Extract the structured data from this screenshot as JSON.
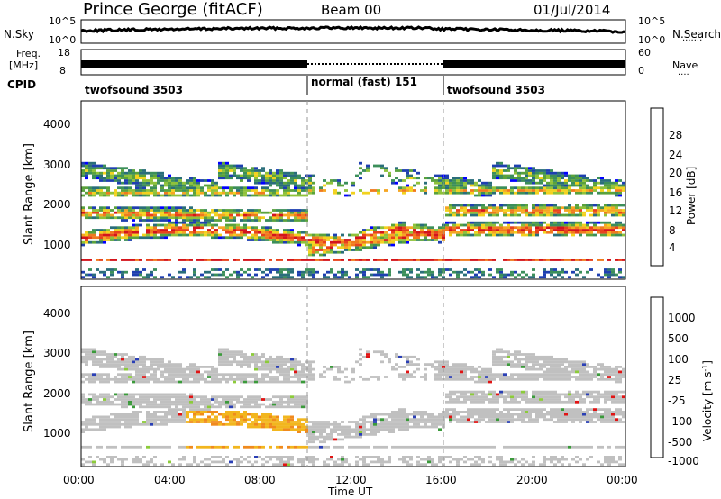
{
  "header": {
    "station": "Prince George (fitACF)",
    "beam": "Beam 00",
    "date": "01/Jul/2014"
  },
  "noise_panel": {
    "left_label": "N.Sky",
    "right_label": "N.Search",
    "ticks_left": [
      "10^5",
      "10^0"
    ],
    "ticks_right": [
      "10^5",
      "10^0"
    ]
  },
  "freq_panel": {
    "left_label_1": "Freq.",
    "left_label_2": "[MHz]",
    "right_label": "Nave",
    "ticks_left": [
      "18",
      "8"
    ],
    "ticks_right": [
      "60",
      "0"
    ]
  },
  "cpid_panel": {
    "label": "CPID",
    "segments": [
      {
        "label": "twofsound 3503",
        "start_h": 0,
        "end_h": 10
      },
      {
        "label": "normal (fast) 151",
        "start_h": 10,
        "end_h": 16
      },
      {
        "label": "twofsound 3503",
        "start_h": 16,
        "end_h": 24
      }
    ]
  },
  "power_panel": {
    "ylabel": "Slant Range [km]",
    "yticks": [
      "1000",
      "2000",
      "3000",
      "4000"
    ],
    "colorbar_label": "Power [dB]",
    "colorbar_ticks": [
      "4",
      "8",
      "12",
      "16",
      "20",
      "24",
      "28"
    ],
    "colors": [
      "#0000ff",
      "#1e3fb0",
      "#2a6e7a",
      "#3c8f5a",
      "#5aa23c",
      "#8fc23a",
      "#f2d21e",
      "#f5a623",
      "#f07a1e",
      "#e8421c",
      "#d4141c"
    ]
  },
  "velocity_panel": {
    "ylabel": "Slant Range [km]",
    "yticks": [
      "1000",
      "2000",
      "3000",
      "4000"
    ],
    "colorbar_label": "Velocity [m s",
    "colorbar_superscript": "-1",
    "colorbar_ticks": [
      "1000",
      "500",
      "100",
      "25",
      "-25",
      "-100",
      "-500",
      "-1000"
    ],
    "colors": [
      "#2a3fb5",
      "#2f6fae",
      "#3b9a3b",
      "#8ccb3a",
      "#c0c0c0",
      "#f2c21e",
      "#f08a1e",
      "#ec4e1c",
      "#e01414"
    ]
  },
  "xaxis": {
    "label": "Time UT",
    "ticks": [
      "00:00",
      "04:00",
      "08:00",
      "12:00",
      "16:00",
      "20:00",
      "00:00"
    ]
  },
  "chart_data": {
    "type": "heatmap",
    "x_range_hours": [
      0,
      24
    ],
    "y_range_km": [
      180,
      4500
    ],
    "power_scale_db": [
      0,
      30
    ],
    "velocity_scale_ms": [
      -1000,
      1000
    ],
    "mode_change_hours": [
      10,
      16
    ]
  }
}
